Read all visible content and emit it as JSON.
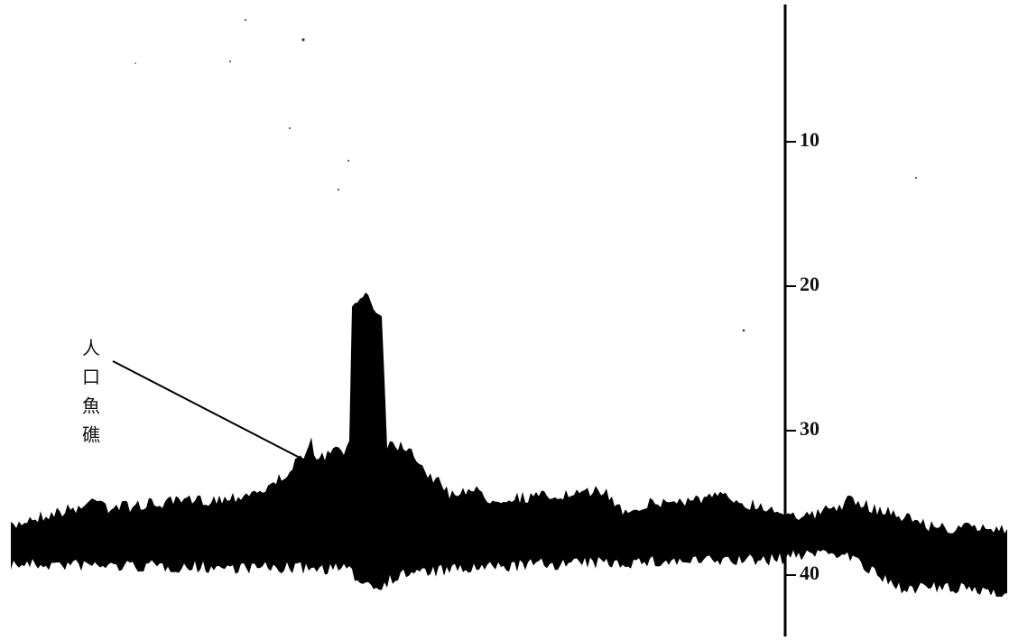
{
  "depth_axis": {
    "ticks": [
      10,
      20,
      30,
      40
    ]
  },
  "annotation": {
    "label": [
      "人",
      "口",
      "魚",
      "礁"
    ]
  }
}
